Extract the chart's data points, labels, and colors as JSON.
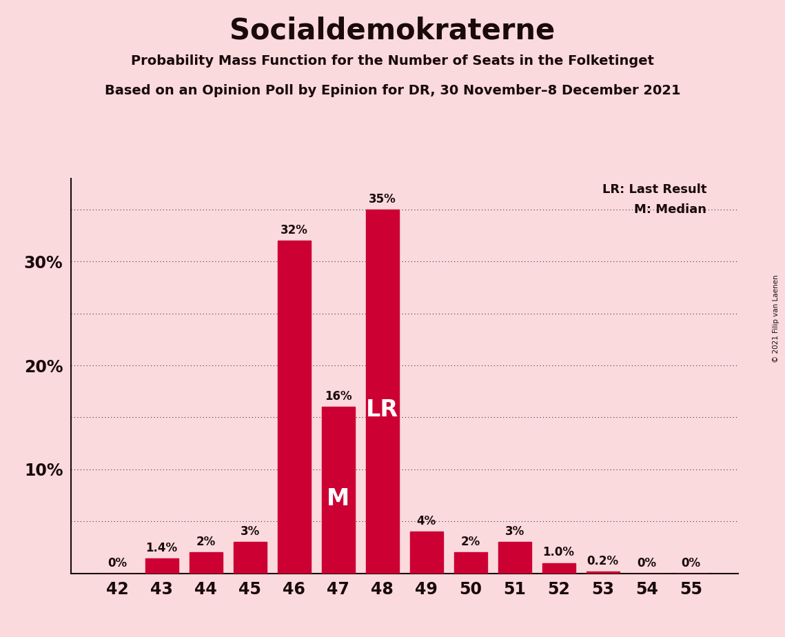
{
  "title": "Socialdemokraterne",
  "subtitle1": "Probability Mass Function for the Number of Seats in the Folketinget",
  "subtitle2": "Based on an Opinion Poll by Epinion for DR, 30 November–8 December 2021",
  "copyright": "© 2021 Filip van Laenen",
  "categories": [
    42,
    43,
    44,
    45,
    46,
    47,
    48,
    49,
    50,
    51,
    52,
    53,
    54,
    55
  ],
  "values": [
    0.0,
    1.4,
    2.0,
    3.0,
    32.0,
    16.0,
    35.0,
    4.0,
    2.0,
    3.0,
    1.0,
    0.2,
    0.0,
    0.0
  ],
  "labels": [
    "0%",
    "1.4%",
    "2%",
    "3%",
    "32%",
    "16%",
    "35%",
    "4%",
    "2%",
    "3%",
    "1.0%",
    "0.2%",
    "0%",
    "0%"
  ],
  "bar_color": "#cc0033",
  "background_color": "#fadadd",
  "text_color": "#1a0a0a",
  "grid_color": "#333333",
  "median_bar": 47,
  "last_result_bar": 48,
  "ylim": [
    0,
    38
  ],
  "ytick_positions": [
    5,
    10,
    15,
    20,
    25,
    30,
    35
  ],
  "ytick_shown": [
    10,
    20,
    30
  ],
  "legend_lr": "LR: Last Result",
  "legend_m": "M: Median"
}
